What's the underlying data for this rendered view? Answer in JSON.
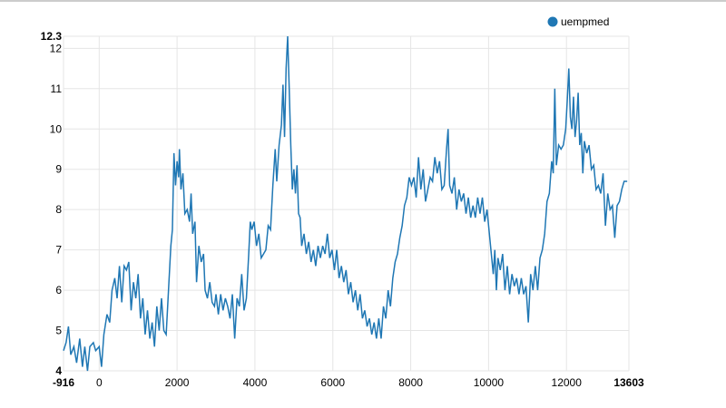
{
  "chart_data": {
    "type": "line",
    "series": [
      {
        "name": "uempmed",
        "color": "#1f77b4",
        "x": [
          -916,
          -850,
          -790,
          -730,
          -650,
          -580,
          -500,
          -430,
          -370,
          -300,
          -240,
          -150,
          -90,
          0,
          60,
          120,
          200,
          270,
          330,
          400,
          460,
          520,
          580,
          640,
          700,
          760,
          820,
          880,
          940,
          1000,
          1060,
          1120,
          1180,
          1240,
          1300,
          1360,
          1420,
          1480,
          1540,
          1600,
          1660,
          1720,
          1780,
          1840,
          1880,
          1920,
          1960,
          2000,
          2040,
          2060,
          2100,
          2150,
          2200,
          2260,
          2320,
          2360,
          2400,
          2460,
          2500,
          2560,
          2620,
          2680,
          2720,
          2780,
          2840,
          2900,
          2960,
          3000,
          3060,
          3120,
          3180,
          3240,
          3300,
          3360,
          3420,
          3480,
          3540,
          3600,
          3660,
          3720,
          3780,
          3840,
          3880,
          3920,
          3980,
          4040,
          4100,
          4160,
          4220,
          4280,
          4340,
          4400,
          4460,
          4520,
          4560,
          4620,
          4680,
          4720,
          4760,
          4800,
          4840,
          4880,
          4920,
          4960,
          5000,
          5040,
          5080,
          5120,
          5160,
          5200,
          5260,
          5320,
          5380,
          5440,
          5500,
          5560,
          5620,
          5680,
          5740,
          5800,
          5860,
          5920,
          5980,
          6040,
          6100,
          6160,
          6220,
          6280,
          6340,
          6400,
          6460,
          6520,
          6580,
          6640,
          6700,
          6760,
          6820,
          6880,
          6940,
          7000,
          7060,
          7120,
          7180,
          7240,
          7300,
          7360,
          7420,
          7480,
          7540,
          7600,
          7660,
          7720,
          7780,
          7840,
          7900,
          7960,
          8020,
          8080,
          8140,
          8200,
          8260,
          8320,
          8380,
          8440,
          8500,
          8560,
          8620,
          8680,
          8740,
          8800,
          8860,
          8920,
          8960,
          9000,
          9060,
          9120,
          9180,
          9240,
          9300,
          9360,
          9420,
          9480,
          9540,
          9600,
          9660,
          9720,
          9780,
          9840,
          9900,
          9960,
          10000,
          10060,
          10120,
          10160,
          10200,
          10240,
          10300,
          10360,
          10420,
          10480,
          10540,
          10600,
          10660,
          10720,
          10780,
          10840,
          10900,
          10960,
          11020,
          11080,
          11140,
          11200,
          11260,
          11320,
          11380,
          11440,
          11500,
          11560,
          11620,
          11660,
          11700,
          11740,
          11800,
          11860,
          11920,
          11980,
          12020,
          12060,
          12100,
          12140,
          12180,
          12220,
          12260,
          12300,
          12340,
          12380,
          12420,
          12460,
          12520,
          12580,
          12640,
          12700,
          12760,
          12820,
          12880,
          12940,
          13000,
          13060,
          13120,
          13180,
          13240,
          13300,
          13360,
          13420,
          13480,
          13560
        ],
        "values": [
          4.5,
          4.7,
          5.1,
          4.4,
          4.6,
          4.2,
          4.8,
          4.1,
          4.6,
          4.0,
          4.6,
          4.7,
          4.5,
          4.6,
          4.1,
          4.9,
          5.4,
          5.2,
          6.0,
          6.3,
          5.8,
          6.6,
          5.7,
          6.6,
          6.5,
          6.7,
          5.5,
          6.2,
          5.8,
          6.4,
          5.3,
          5.8,
          4.9,
          5.5,
          4.8,
          5.2,
          4.6,
          5.6,
          5.0,
          5.8,
          5.0,
          4.9,
          6.0,
          7.1,
          7.5,
          9.4,
          8.6,
          9.2,
          8.8,
          9.5,
          8.5,
          8.9,
          7.9,
          8.0,
          7.7,
          8.4,
          7.4,
          7.7,
          6.2,
          7.1,
          6.7,
          6.9,
          6.0,
          5.8,
          6.2,
          5.7,
          5.6,
          5.9,
          5.4,
          5.9,
          5.5,
          5.8,
          5.6,
          5.3,
          5.9,
          4.8,
          5.8,
          5.6,
          6.4,
          5.5,
          5.8,
          6.9,
          7.7,
          7.5,
          7.7,
          7.1,
          7.4,
          6.8,
          6.9,
          7.0,
          7.6,
          7.5,
          8.6,
          9.5,
          8.7,
          9.6,
          10.1,
          11.1,
          9.8,
          11.5,
          12.3,
          11.0,
          9.6,
          8.5,
          9.0,
          8.4,
          9.1,
          7.9,
          7.8,
          7.1,
          7.4,
          6.9,
          7.2,
          6.7,
          7.0,
          6.6,
          7.1,
          6.8,
          7.1,
          6.9,
          7.4,
          6.8,
          7.0,
          6.5,
          7.0,
          6.3,
          6.6,
          6.2,
          6.5,
          5.9,
          6.2,
          5.7,
          6.0,
          5.5,
          5.9,
          5.3,
          5.5,
          5.1,
          5.3,
          4.9,
          5.2,
          4.8,
          5.3,
          4.8,
          5.6,
          5.3,
          6.0,
          5.6,
          6.3,
          6.7,
          6.9,
          7.3,
          7.6,
          8.1,
          8.3,
          8.8,
          8.6,
          8.8,
          8.3,
          9.3,
          8.5,
          9.0,
          8.2,
          8.5,
          8.8,
          8.7,
          9.3,
          8.9,
          9.2,
          8.5,
          8.6,
          9.5,
          10.0,
          8.6,
          8.4,
          8.8,
          8.0,
          8.5,
          8.2,
          8.4,
          7.9,
          8.3,
          7.8,
          8.1,
          7.8,
          8.3,
          7.9,
          8.3,
          7.7,
          8.0,
          7.6,
          7.0,
          6.4,
          7.0,
          6.0,
          6.8,
          6.5,
          6.9,
          6.0,
          6.6,
          5.9,
          6.4,
          6.1,
          6.3,
          5.9,
          6.3,
          5.9,
          6.1,
          5.2,
          6.4,
          6.0,
          6.6,
          6.0,
          6.8,
          7.0,
          7.4,
          8.2,
          8.4,
          9.2,
          8.9,
          11.0,
          9.1,
          9.6,
          9.5,
          9.6,
          10.0,
          10.7,
          11.5,
          10.3,
          10.0,
          10.8,
          9.8,
          10.2,
          10.9,
          9.6,
          9.9,
          8.9,
          9.7,
          9.4,
          9.6,
          9.0,
          9.1,
          8.5,
          8.6,
          8.4,
          8.9,
          7.6,
          8.4,
          8.0,
          8.1,
          7.3,
          8.1,
          8.2,
          8.5,
          8.7,
          8.7
        ]
      }
    ],
    "xlim": [
      -916,
      13603
    ],
    "xticks": [
      -916,
      0,
      2000,
      4000,
      6000,
      8000,
      10000,
      12000,
      13603
    ],
    "ylim": [
      4,
      12.3
    ],
    "yticks": [
      4,
      5,
      6,
      7,
      8,
      9,
      10,
      11,
      12,
      12.3
    ],
    "grid": true,
    "legend": "top-right"
  }
}
